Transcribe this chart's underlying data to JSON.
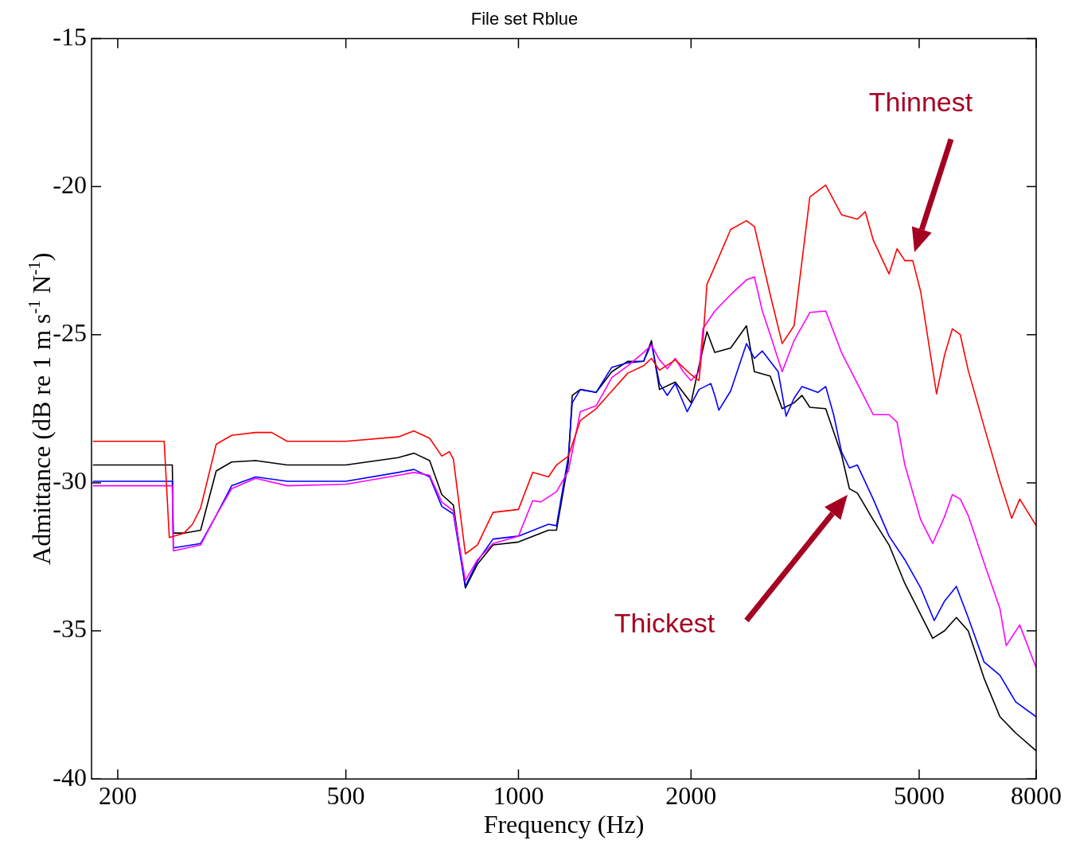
{
  "chart_data": {
    "type": "line",
    "title": "File set Rblue",
    "xlabel": "Frequency (Hz)",
    "ylabel": "Admittance (dB re 1 m s$^{-1}$ N$^{-1}$)",
    "log": "x",
    "grid": false,
    "legend": false,
    "marker": "none",
    "line_style": "solid",
    "xlim": [
      180,
      8000
    ],
    "xticks": [
      200,
      500,
      1000,
      2000,
      5000,
      8000
    ],
    "ylim": [
      -40,
      -15
    ],
    "yticks": [
      -40,
      -35,
      -30,
      -25,
      -20,
      -15
    ],
    "annotations": [
      "Thinnest",
      "Thickest"
    ],
    "series": [
      {
        "color": "#ff0000",
        "x": [
          181,
          200,
          241,
          246,
          261,
          270,
          279,
          297,
          316,
          348,
          371,
          395,
          500,
          617,
          657,
          700,
          735,
          758,
          770,
          808,
          848,
          903,
          1000,
          1059,
          1128,
          1165,
          1222,
          1282,
          1366,
          1455,
          1551,
          1653,
          1706,
          1762,
          1877,
          2000,
          2065,
          2098,
          2132,
          2200,
          2345,
          2499,
          2580,
          2749,
          2884,
          3025,
          3223,
          3435,
          3660,
          3901,
          4027,
          4157,
          4430,
          4574,
          4721,
          4873,
          5031,
          5361,
          5535,
          5713,
          5897,
          6088,
          6489,
          6916,
          7252,
          7488,
          8000
        ],
        "values": [
          -28.6,
          -28.6,
          -28.6,
          -31.85,
          -31.7,
          -31.4,
          -30.85,
          -28.7,
          -28.4,
          -28.3,
          -28.3,
          -28.6,
          -28.6,
          -28.45,
          -28.25,
          -28.5,
          -29.1,
          -28.95,
          -29.2,
          -32.4,
          -32.1,
          -31.0,
          -30.9,
          -29.65,
          -29.8,
          -29.4,
          -29.1,
          -27.9,
          -27.5,
          -26.9,
          -26.3,
          -26.05,
          -25.8,
          -26.2,
          -25.85,
          -26.35,
          -26.55,
          -25.2,
          -23.3,
          -22.7,
          -21.45,
          -21.15,
          -21.35,
          -23.65,
          -25.3,
          -24.7,
          -20.35,
          -19.95,
          -20.95,
          -21.1,
          -20.85,
          -21.8,
          -22.95,
          -22.1,
          -22.5,
          -22.5,
          -23.55,
          -27.0,
          -25.7,
          -24.8,
          -25.0,
          -26.2,
          -28.1,
          -29.95,
          -31.2,
          -30.55,
          -31.45
        ]
      },
      {
        "color": "#ff00ff",
        "x": [
          181,
          200,
          249,
          250,
          279,
          297,
          316,
          348,
          395,
          500,
          617,
          657,
          700,
          735,
          770,
          808,
          848,
          903,
          1000,
          1059,
          1093,
          1165,
          1222,
          1282,
          1366,
          1455,
          1551,
          1653,
          1706,
          1762,
          1818,
          1877,
          1938,
          2000,
          2065,
          2098,
          2200,
          2345,
          2499,
          2580,
          2663,
          2749,
          2884,
          3025,
          3223,
          3435,
          3660,
          3901,
          4157,
          4430,
          4574,
          4721,
          5031,
          5278,
          5535,
          5713,
          5897,
          6088,
          6489,
          6916,
          7093,
          7488,
          8000
        ],
        "values": [
          -30.1,
          -30.1,
          -30.1,
          -32.3,
          -32.1,
          -31.1,
          -30.2,
          -29.85,
          -30.1,
          -30.05,
          -29.75,
          -29.65,
          -29.75,
          -30.65,
          -30.95,
          -33.3,
          -32.6,
          -32.05,
          -31.8,
          -30.6,
          -30.65,
          -30.3,
          -29.6,
          -27.6,
          -27.4,
          -26.45,
          -26.05,
          -25.6,
          -25.35,
          -25.85,
          -26.15,
          -25.8,
          -26.25,
          -26.55,
          -26.25,
          -24.8,
          -24.2,
          -23.65,
          -23.15,
          -23.05,
          -24.2,
          -25.0,
          -26.25,
          -25.2,
          -24.25,
          -24.2,
          -25.6,
          -26.65,
          -27.7,
          -27.7,
          -27.95,
          -29.4,
          -31.25,
          -32.05,
          -31.15,
          -30.4,
          -30.55,
          -31.1,
          -32.7,
          -34.25,
          -35.5,
          -34.8,
          -36.25
        ]
      },
      {
        "color": "#0000ff",
        "x": [
          181,
          200,
          249,
          250,
          279,
          297,
          316,
          348,
          395,
          500,
          617,
          657,
          700,
          735,
          770,
          808,
          848,
          903,
          1000,
          1128,
          1165,
          1222,
          1241,
          1282,
          1366,
          1455,
          1551,
          1653,
          1706,
          1762,
          1818,
          1877,
          1969,
          2065,
          2166,
          2200,
          2236,
          2345,
          2499,
          2580,
          2663,
          2838,
          2930,
          3025,
          3123,
          3328,
          3435,
          3546,
          3660,
          3778,
          3901,
          4157,
          4430,
          4721,
          5031,
          5311,
          5535,
          5806,
          6088,
          6489,
          6916,
          7369,
          8000
        ],
        "values": [
          -29.95,
          -29.95,
          -29.95,
          -32.2,
          -32.05,
          -31.1,
          -30.1,
          -29.8,
          -29.95,
          -29.95,
          -29.65,
          -29.55,
          -29.8,
          -30.8,
          -31.05,
          -33.5,
          -32.65,
          -31.9,
          -31.8,
          -31.4,
          -31.45,
          -29.1,
          -27.3,
          -26.85,
          -26.95,
          -26.1,
          -25.95,
          -25.9,
          -25.3,
          -26.65,
          -27.05,
          -26.65,
          -27.6,
          -26.85,
          -26.65,
          -27.05,
          -27.55,
          -26.9,
          -25.3,
          -25.8,
          -25.55,
          -26.25,
          -27.75,
          -27.15,
          -26.75,
          -26.95,
          -26.75,
          -27.7,
          -28.95,
          -29.5,
          -29.4,
          -30.55,
          -31.8,
          -32.6,
          -33.55,
          -34.65,
          -34.0,
          -33.5,
          -34.55,
          -36.05,
          -36.5,
          -37.4,
          -37.9
        ]
      },
      {
        "color": "#000000",
        "x": [
          181,
          200,
          249,
          250,
          261,
          279,
          297,
          316,
          348,
          395,
          500,
          617,
          657,
          700,
          735,
          770,
          808,
          848,
          903,
          1000,
          1128,
          1165,
          1222,
          1241,
          1282,
          1366,
          1455,
          1551,
          1653,
          1706,
          1762,
          1877,
          2000,
          2065,
          2132,
          2200,
          2345,
          2499,
          2580,
          2749,
          2884,
          3025,
          3123,
          3223,
          3435,
          3660,
          3778,
          3901,
          4157,
          4430,
          4721,
          5031,
          5278,
          5535,
          5806,
          6088,
          6489,
          6916,
          7369,
          8000
        ],
        "values": [
          -29.4,
          -29.4,
          -29.4,
          -31.7,
          -31.7,
          -31.6,
          -29.6,
          -29.3,
          -29.25,
          -29.4,
          -29.4,
          -29.15,
          -29.0,
          -29.25,
          -30.4,
          -30.75,
          -33.55,
          -32.75,
          -32.1,
          -32.0,
          -31.6,
          -31.6,
          -29.3,
          -27.05,
          -26.85,
          -26.95,
          -26.25,
          -25.9,
          -25.9,
          -25.2,
          -26.85,
          -26.6,
          -27.3,
          -26.05,
          -24.9,
          -25.6,
          -25.45,
          -24.7,
          -26.25,
          -26.4,
          -27.5,
          -27.3,
          -27.05,
          -27.45,
          -27.5,
          -29.05,
          -30.2,
          -30.35,
          -31.25,
          -32.1,
          -33.4,
          -34.45,
          -35.25,
          -35.0,
          -34.55,
          -35.0,
          -36.6,
          -37.9,
          -38.45,
          -39.05
        ]
      }
    ]
  }
}
